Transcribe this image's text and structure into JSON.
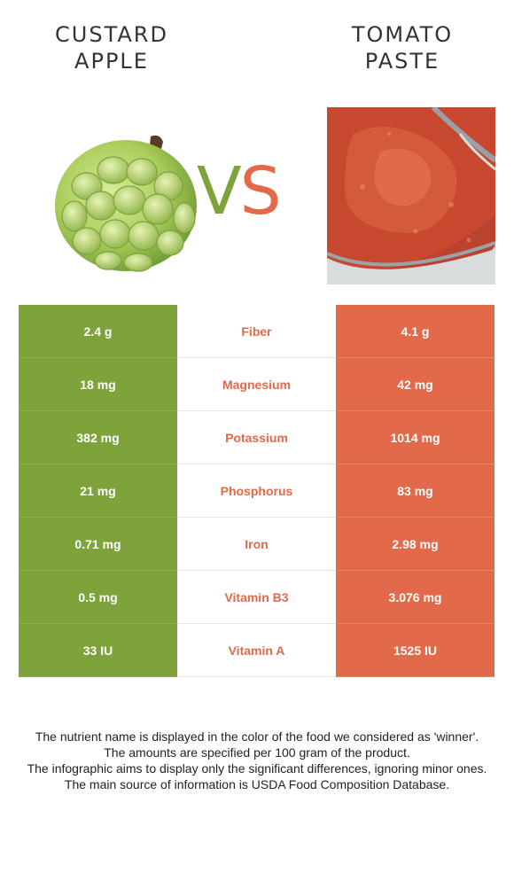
{
  "left_food": {
    "title_line1": "CUSTARD",
    "title_line2": "APPLE",
    "color": "#7ea33a"
  },
  "right_food": {
    "title_line1": "TOMATO",
    "title_line2": "PASTE",
    "color": "#e26a4a"
  },
  "vs": {
    "v": "V",
    "s": "S"
  },
  "nutrients": [
    {
      "name": "Fiber",
      "left": "2.4 g",
      "right": "4.1 g"
    },
    {
      "name": "Magnesium",
      "left": "18 mg",
      "right": "42 mg"
    },
    {
      "name": "Potassium",
      "left": "382 mg",
      "right": "1014 mg"
    },
    {
      "name": "Phosphorus",
      "left": "21 mg",
      "right": "83 mg"
    },
    {
      "name": "Iron",
      "left": "0.71 mg",
      "right": "2.98 mg"
    },
    {
      "name": "Vitamin B3",
      "left": "0.5 mg",
      "right": "3.076 mg"
    },
    {
      "name": "Vitamin A",
      "left": "33 IU",
      "right": "1525 IU"
    }
  ],
  "notes": [
    "The nutrient name is displayed in the color of the food we considered as 'winner'.",
    "The amounts are specified per 100 gram of the product.",
    "The infographic aims to display only the significant differences, ignoring minor ones.",
    "The main source of information is USDA Food Composition Database."
  ]
}
